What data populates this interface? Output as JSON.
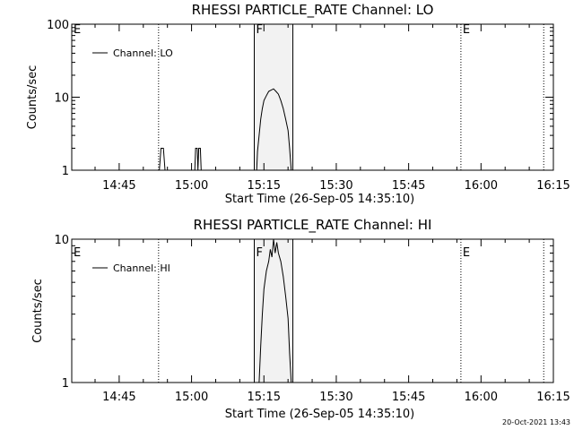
{
  "footer_timestamp": "20-Oct-2021 13:43",
  "chart_data": [
    {
      "type": "line",
      "title": "RHESSI PARTICLE_RATE Channel: LO",
      "xlabel": "Start Time (26-Sep-05 14:35:10)",
      "ylabel": "Counts/sec",
      "yscale": "log",
      "ylim": [
        1,
        100
      ],
      "yticks": [
        {
          "v": 1,
          "label": "1"
        },
        {
          "v": 10,
          "label": "10"
        },
        {
          "v": 100,
          "label": "100"
        }
      ],
      "xlim": [
        "14:35:10",
        "16:15:00"
      ],
      "xticks": [
        "14:45",
        "15:00",
        "15:15",
        "15:30",
        "15:45",
        "16:00",
        "16:15"
      ],
      "legend": {
        "label": "Channel: LO",
        "placement": "top-left"
      },
      "markers": [
        {
          "time": "14:35:10",
          "label": "E",
          "style": "dotted"
        },
        {
          "time": "14:53:10",
          "label": "",
          "style": "dotted"
        },
        {
          "time": "15:13:00",
          "label": "F",
          "style": "solid"
        },
        {
          "time": "15:21:00",
          "label": "",
          "style": "solid"
        },
        {
          "time": "15:55:50",
          "label": "E",
          "style": "dotted"
        },
        {
          "time": "16:13:00",
          "label": "",
          "style": "dotted"
        }
      ],
      "shaded_interval": [
        "15:13:00",
        "15:21:00"
      ],
      "series": [
        {
          "points": [
            [
              "14:53:20",
              1
            ],
            [
              "14:53:40",
              2
            ],
            [
              "14:54:10",
              2
            ],
            [
              "14:54:30",
              1
            ],
            [
              "15:00:40",
              1
            ],
            [
              "15:00:50",
              2
            ],
            [
              "15:01:10",
              2
            ],
            [
              "15:01:20",
              1
            ],
            [
              "15:01:30",
              2
            ],
            [
              "15:01:50",
              2
            ],
            [
              "15:02:00",
              1
            ],
            [
              "15:13:30",
              1
            ],
            [
              "15:13:40",
              1.8
            ],
            [
              "15:14:00",
              3
            ],
            [
              "15:14:20",
              5
            ],
            [
              "15:14:40",
              7
            ],
            [
              "15:15:00",
              9
            ],
            [
              "15:15:30",
              10.5
            ],
            [
              "15:16:00",
              12
            ],
            [
              "15:16:30",
              12.5
            ],
            [
              "15:17:00",
              13
            ],
            [
              "15:17:30",
              12
            ],
            [
              "15:18:00",
              11
            ],
            [
              "15:18:30",
              9
            ],
            [
              "15:19:00",
              7
            ],
            [
              "15:19:30",
              5
            ],
            [
              "15:20:00",
              3.5
            ],
            [
              "15:20:20",
              2
            ],
            [
              "15:20:40",
              1
            ]
          ]
        }
      ]
    },
    {
      "type": "line",
      "title": "RHESSI PARTICLE_RATE Channel: HI",
      "xlabel": "Start Time (26-Sep-05 14:35:10)",
      "ylabel": "Counts/sec",
      "yscale": "log",
      "ylim": [
        1,
        10
      ],
      "yticks": [
        {
          "v": 1,
          "label": "1"
        },
        {
          "v": 10,
          "label": "10"
        }
      ],
      "xlim": [
        "14:35:10",
        "16:15:00"
      ],
      "xticks": [
        "14:45",
        "15:00",
        "15:15",
        "15:30",
        "15:45",
        "16:00",
        "16:15"
      ],
      "legend": {
        "label": "Channel: HI",
        "placement": "top-left"
      },
      "markers": [
        {
          "time": "14:35:10",
          "label": "E",
          "style": "dotted"
        },
        {
          "time": "14:53:10",
          "label": "",
          "style": "dotted"
        },
        {
          "time": "15:13:00",
          "label": "F",
          "style": "solid"
        },
        {
          "time": "15:21:00",
          "label": "",
          "style": "solid"
        },
        {
          "time": "15:55:50",
          "label": "E",
          "style": "dotted"
        },
        {
          "time": "16:13:00",
          "label": "",
          "style": "dotted"
        }
      ],
      "shaded_interval": [
        "15:13:00",
        "15:21:00"
      ],
      "series": [
        {
          "points": [
            [
              "15:14:00",
              1
            ],
            [
              "15:14:20",
              1.8
            ],
            [
              "15:14:40",
              3
            ],
            [
              "15:15:00",
              4.5
            ],
            [
              "15:15:30",
              6
            ],
            [
              "15:16:00",
              7
            ],
            [
              "15:16:20",
              8.5
            ],
            [
              "15:16:40",
              7.5
            ],
            [
              "15:17:00",
              10
            ],
            [
              "15:17:20",
              8
            ],
            [
              "15:17:40",
              9.5
            ],
            [
              "15:18:00",
              8
            ],
            [
              "15:18:30",
              7
            ],
            [
              "15:19:00",
              5.5
            ],
            [
              "15:19:30",
              4
            ],
            [
              "15:20:00",
              2.8
            ],
            [
              "15:20:20",
              1.6
            ],
            [
              "15:20:40",
              1
            ]
          ]
        }
      ]
    }
  ]
}
